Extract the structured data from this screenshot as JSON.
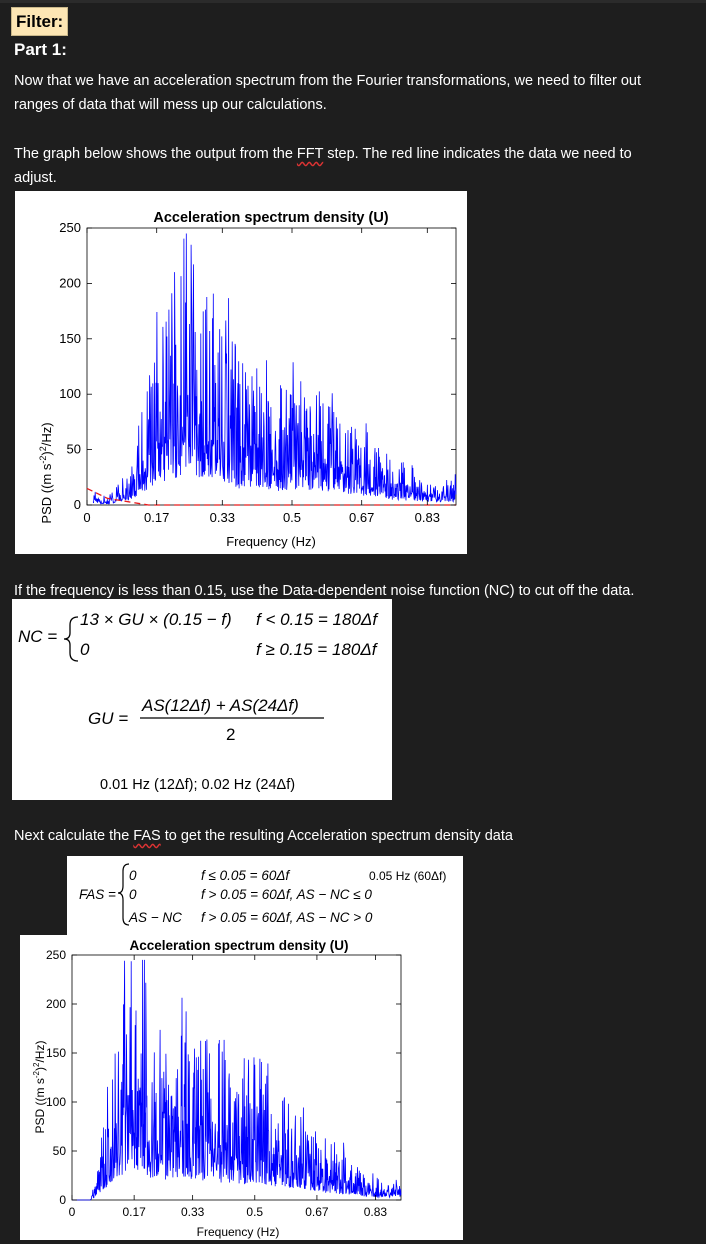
{
  "header": {
    "badge": "Filter:",
    "part": "Part 1:"
  },
  "intro": {
    "p1_line1": "Now that we have an acceleration spectrum from the Fourier transformations, we need to filter out",
    "p1_line2": "ranges of data that will mess up our calculations.",
    "p2_line1_a": "The graph below shows the output from the ",
    "p2_line1_fft": "FFT",
    "p2_line1_b": " step. The red line indicates the data we need to",
    "p2_line2": "adjust."
  },
  "noise_note": "If the frequency is less than 0.15, use the Data-dependent noise function (NC) to cut off the data.",
  "equations": {
    "nc_lhs": "NC =",
    "nc_case1": "13 × GU × (0.15 − f)",
    "nc_cond1": "f < 0.15 = 180Δf",
    "nc_case2": "0",
    "nc_cond2": "f ≥ 0.15 = 180Δf",
    "gu_lhs": "GU =",
    "gu_num": "AS(12Δf) + AS(24Δf)",
    "gu_den": "2",
    "gu_note": "0.01 Hz (12Δf); 0.02 Hz (24Δf)",
    "fas_lhs": "FAS =",
    "fas_case1": "0",
    "fas_cond1": "f ≤ 0.05 = 60Δf",
    "fas_case2": "0",
    "fas_cond2": "f > 0.05 = 60Δf, AS − NC ≤ 0",
    "fas_case3": "AS − NC",
    "fas_cond3": "f > 0.05 = 60Δf, AS − NC > 0",
    "fas_note": "0.05 Hz (60Δf)"
  },
  "next_line": {
    "a": "Next calculate the ",
    "fas": "FAS",
    "b": " to get the resulting Acceleration spectrum density data"
  },
  "colors": {
    "series": "#0000ff",
    "noise": "#e8191b",
    "background": "#1e1e1e",
    "badge": "#fde6b4"
  },
  "chart_data": [
    {
      "type": "line",
      "title": "Acceleration spectrum density (U)",
      "xlabel": "Frequency (Hz)",
      "ylabel": "PSD ((m s^-2)^2/Hz)",
      "xlim": [
        0,
        0.9
      ],
      "ylim": [
        0,
        250
      ],
      "xticks": [
        0,
        0.17,
        0.33,
        0.5,
        0.67,
        0.83
      ],
      "xtick_labels": [
        "0",
        "0.17",
        "0.33",
        "0.5",
        "0.67",
        "0.83"
      ],
      "yticks": [
        0,
        50,
        100,
        150,
        200,
        250
      ],
      "ytick_labels": [
        "0",
        "50",
        "100",
        "150",
        "200",
        "250"
      ],
      "grid": false,
      "series": [
        {
          "values": [
            [
              0.015,
              12
            ],
            [
              0.03,
              8
            ],
            [
              0.05,
              5
            ],
            [
              0.08,
              15
            ],
            [
              0.12,
              45
            ],
            [
              0.16,
              110
            ],
            [
              0.17,
              140
            ],
            [
              0.19,
              120
            ],
            [
              0.21,
              150
            ],
            [
              0.23,
              180
            ],
            [
              0.25,
              210
            ],
            [
              0.27,
              160
            ],
            [
              0.29,
              140
            ],
            [
              0.31,
              165
            ],
            [
              0.33,
              150
            ],
            [
              0.35,
              120
            ],
            [
              0.37,
              100
            ],
            [
              0.4,
              95
            ],
            [
              0.43,
              100
            ],
            [
              0.46,
              80
            ],
            [
              0.5,
              95
            ],
            [
              0.55,
              90
            ],
            [
              0.6,
              80
            ],
            [
              0.65,
              60
            ],
            [
              0.7,
              50
            ],
            [
              0.75,
              30
            ],
            [
              0.8,
              25
            ],
            [
              0.85,
              15
            ],
            [
              0.9,
              20
            ]
          ]
        },
        {
          "values": [
            [
              0.0,
              15
            ],
            [
              0.05,
              6
            ],
            [
              0.1,
              3
            ],
            [
              0.15,
              0
            ],
            [
              0.9,
              0
            ]
          ]
        }
      ]
    },
    {
      "type": "line",
      "title": "Acceleration spectrum density (U)",
      "xlabel": "Frequency (Hz)",
      "ylabel": "PSD ((m s^-2)^2/Hz)",
      "xlim": [
        0,
        0.9
      ],
      "ylim": [
        0,
        250
      ],
      "xticks": [
        0,
        0.17,
        0.33,
        0.5,
        0.67,
        0.83
      ],
      "xtick_labels": [
        "0",
        "0.17",
        "0.33",
        "0.5",
        "0.67",
        "0.83"
      ],
      "yticks": [
        0,
        50,
        100,
        150,
        200,
        250
      ],
      "ytick_labels": [
        "0",
        "50",
        "100",
        "150",
        "200",
        "250"
      ],
      "grid": false,
      "series": [
        {
          "values": [
            [
              0.0,
              0
            ],
            [
              0.05,
              0
            ],
            [
              0.07,
              30
            ],
            [
              0.1,
              100
            ],
            [
              0.13,
              150
            ],
            [
              0.15,
              190
            ],
            [
              0.17,
              185
            ],
            [
              0.19,
              205
            ],
            [
              0.21,
              150
            ],
            [
              0.25,
              130
            ],
            [
              0.3,
              150
            ],
            [
              0.33,
              140
            ],
            [
              0.35,
              120
            ],
            [
              0.38,
              150
            ],
            [
              0.4,
              120
            ],
            [
              0.45,
              105
            ],
            [
              0.5,
              110
            ],
            [
              0.55,
              90
            ],
            [
              0.6,
              80
            ],
            [
              0.65,
              65
            ],
            [
              0.7,
              45
            ],
            [
              0.75,
              40
            ],
            [
              0.8,
              25
            ],
            [
              0.85,
              15
            ],
            [
              0.9,
              20
            ]
          ]
        }
      ]
    }
  ]
}
